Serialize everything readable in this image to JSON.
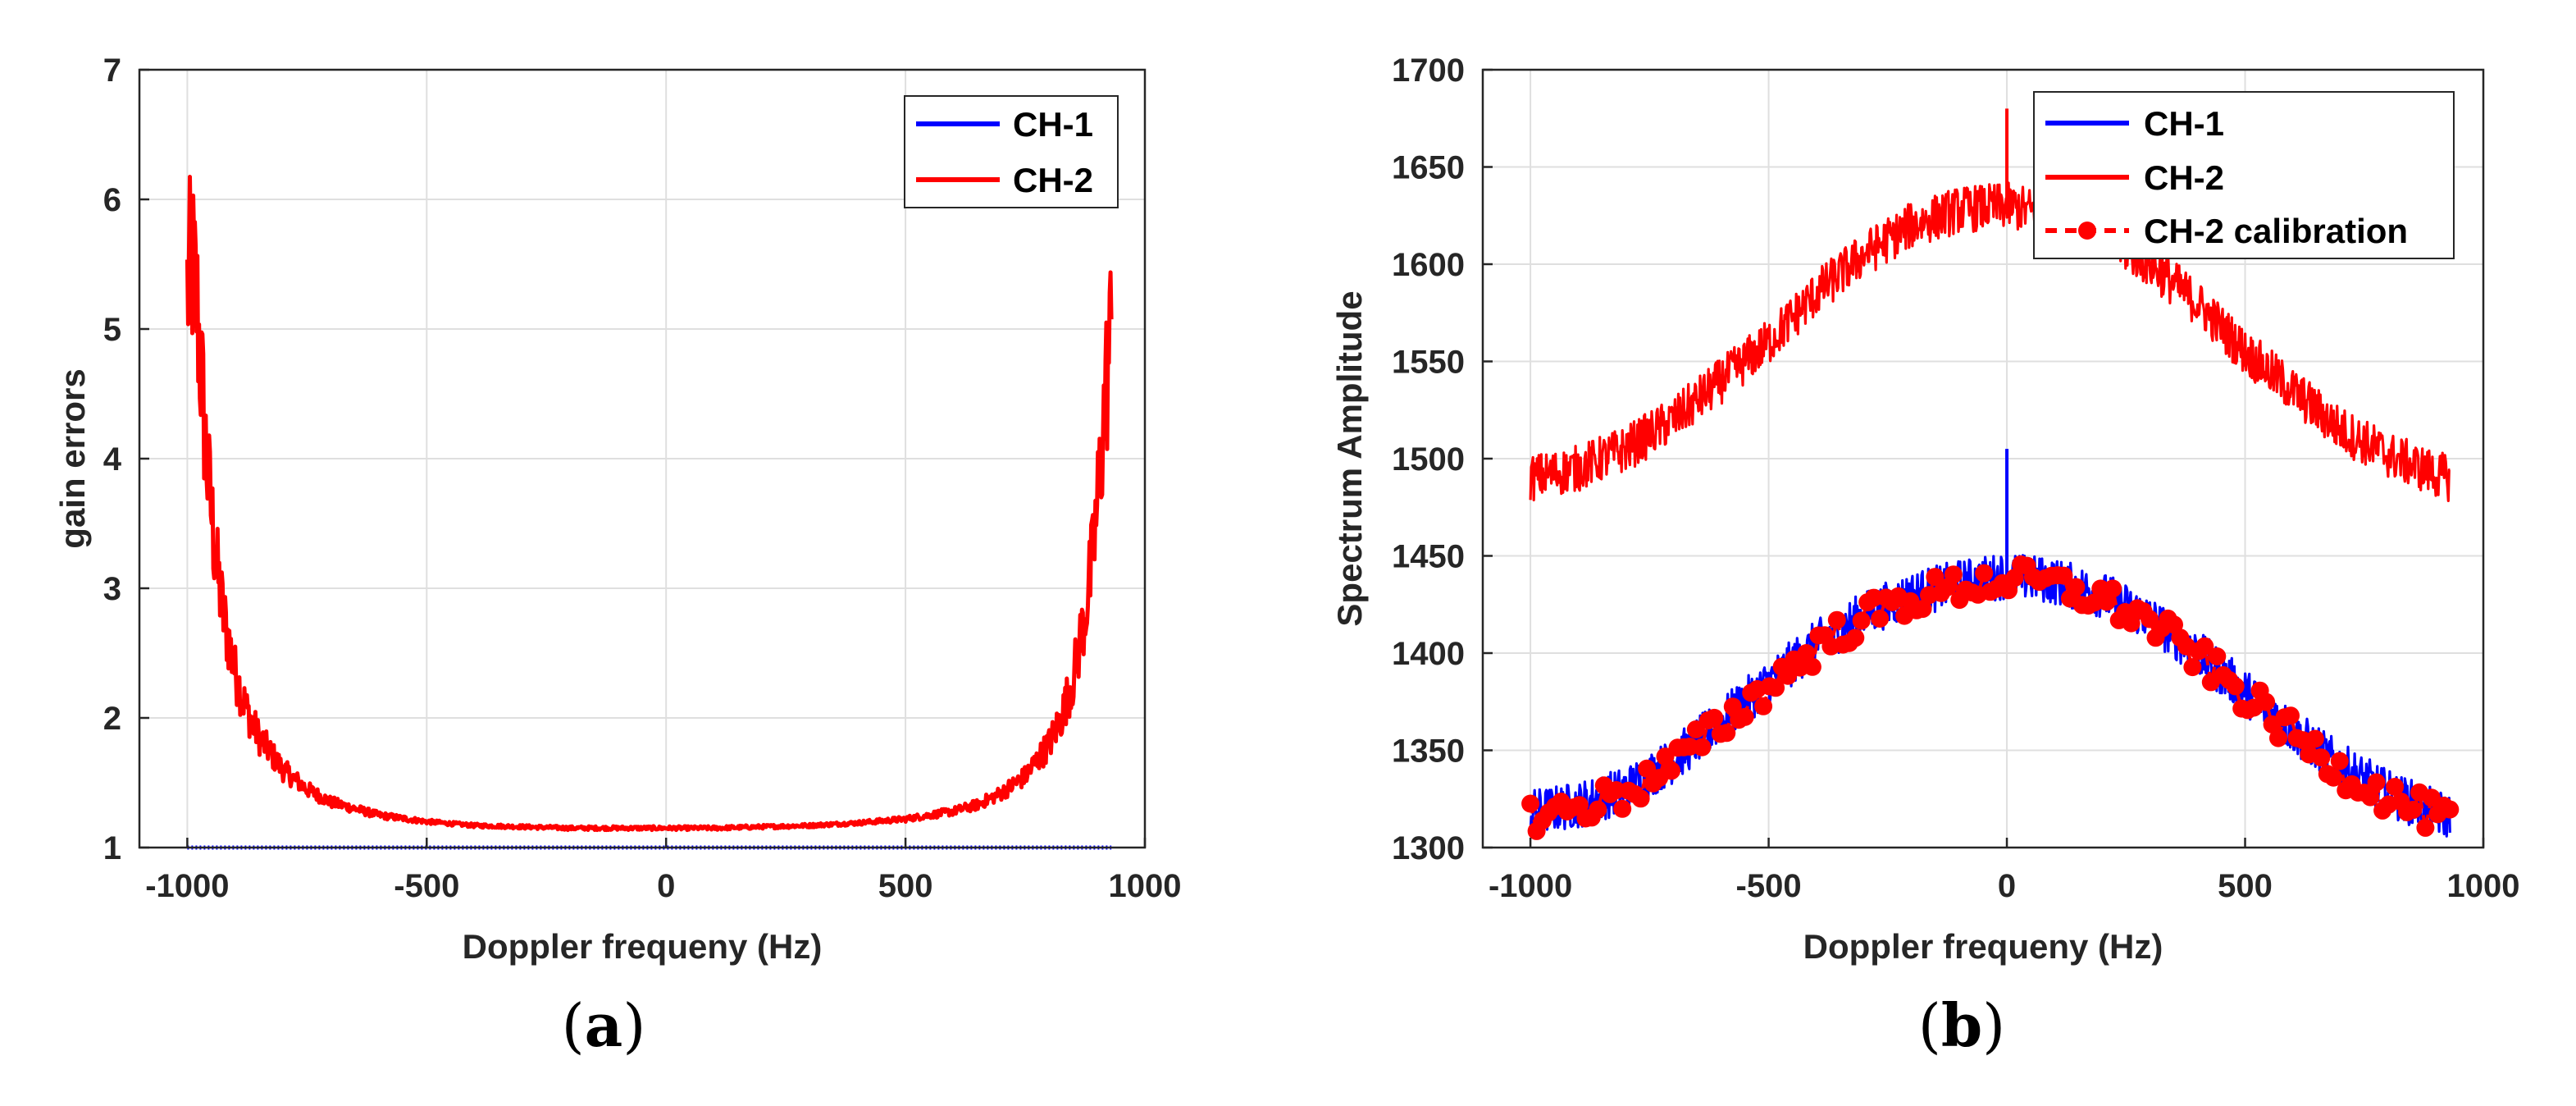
{
  "colors": {
    "ch1": "#0000ff",
    "ch2": "#ff0000",
    "grid": "#dfdfdf",
    "axis": "#262626"
  },
  "chart_data": [
    {
      "panel": "a",
      "type": "line",
      "caption_open": "(",
      "caption_letter": "a",
      "caption_close": ")",
      "xlabel": "Doppler frequeny (Hz)",
      "ylabel": "gain errors",
      "xlim": [
        -1100,
        1000
      ],
      "ylim": [
        1,
        7
      ],
      "xticks": [
        -1000,
        -500,
        0,
        500,
        1000
      ],
      "yticks": [
        1,
        2,
        3,
        4,
        5,
        6,
        7
      ],
      "grid": true,
      "legend_position": "top-right",
      "series": [
        {
          "name": "CH-1",
          "color": "#0000ff",
          "style": "solid-markers",
          "x": [
            -1000,
            930
          ],
          "y": [
            1.0,
            1.0
          ]
        },
        {
          "name": "CH-2",
          "color": "#ff0000",
          "style": "noisy",
          "x": [
            -1000,
            -990,
            -980,
            -970,
            -960,
            -950,
            -940,
            -925,
            -900,
            -875,
            -850,
            -800,
            -750,
            -700,
            -600,
            -500,
            -400,
            -300,
            -200,
            -100,
            0,
            100,
            200,
            300,
            400,
            500,
            600,
            650,
            700,
            750,
            800,
            825,
            850,
            875,
            890,
            900,
            910,
            920,
            930
          ],
          "y": [
            5.3,
            5.5,
            5.2,
            4.6,
            4.0,
            3.6,
            3.2,
            2.8,
            2.35,
            2.05,
            1.85,
            1.6,
            1.45,
            1.35,
            1.25,
            1.2,
            1.17,
            1.16,
            1.15,
            1.15,
            1.15,
            1.15,
            1.16,
            1.17,
            1.19,
            1.22,
            1.28,
            1.33,
            1.42,
            1.55,
            1.8,
            2.0,
            2.3,
            2.8,
            3.2,
            3.6,
            4.1,
            4.6,
            5.0
          ]
        }
      ]
    },
    {
      "panel": "b",
      "type": "line",
      "caption_open": "(",
      "caption_letter": "b",
      "caption_close": ")",
      "xlabel": "Doppler frequeny (Hz)",
      "ylabel": "Spectrum Amplitude",
      "xlim": [
        -1100,
        1000
      ],
      "ylim": [
        1300,
        1700
      ],
      "xticks": [
        -1000,
        -500,
        0,
        500,
        1000
      ],
      "yticks": [
        1300,
        1350,
        1400,
        1450,
        1500,
        1550,
        1600,
        1650,
        1700
      ],
      "grid": true,
      "legend_position": "top-right",
      "series": [
        {
          "name": "CH-1",
          "color": "#0000ff",
          "style": "noisy",
          "x": [
            -1000,
            -900,
            -800,
            -700,
            -600,
            -500,
            -400,
            -300,
            -200,
            -100,
            0,
            100,
            200,
            300,
            400,
            500,
            600,
            700,
            800,
            900,
            930
          ],
          "y": [
            1318,
            1322,
            1330,
            1345,
            1365,
            1385,
            1405,
            1420,
            1430,
            1436,
            1440,
            1437,
            1430,
            1418,
            1400,
            1380,
            1360,
            1342,
            1328,
            1318,
            1316
          ],
          "spike": {
            "x": 0,
            "y": 1505
          }
        },
        {
          "name": "CH-2",
          "color": "#ff0000",
          "style": "noisy",
          "x": [
            -1000,
            -900,
            -800,
            -700,
            -600,
            -500,
            -400,
            -300,
            -200,
            -100,
            0,
            100,
            200,
            300,
            400,
            500,
            600,
            700,
            800,
            900,
            930
          ],
          "y": [
            1490,
            1495,
            1505,
            1520,
            1540,
            1560,
            1585,
            1605,
            1620,
            1628,
            1630,
            1625,
            1615,
            1600,
            1580,
            1555,
            1535,
            1515,
            1502,
            1492,
            1490
          ],
          "spike": {
            "x": 0,
            "y": 1680
          }
        },
        {
          "name": "CH-2 calibration",
          "color": "#ff0000",
          "style": "dashed-markers",
          "x": [
            -1000,
            -900,
            -800,
            -700,
            -600,
            -500,
            -400,
            -300,
            -200,
            -100,
            0,
            100,
            200,
            300,
            400,
            500,
            600,
            700,
            800,
            900,
            930
          ],
          "y": [
            1316,
            1320,
            1328,
            1343,
            1363,
            1383,
            1403,
            1418,
            1428,
            1434,
            1438,
            1435,
            1428,
            1416,
            1398,
            1378,
            1358,
            1340,
            1326,
            1316,
            1314
          ]
        }
      ]
    }
  ]
}
